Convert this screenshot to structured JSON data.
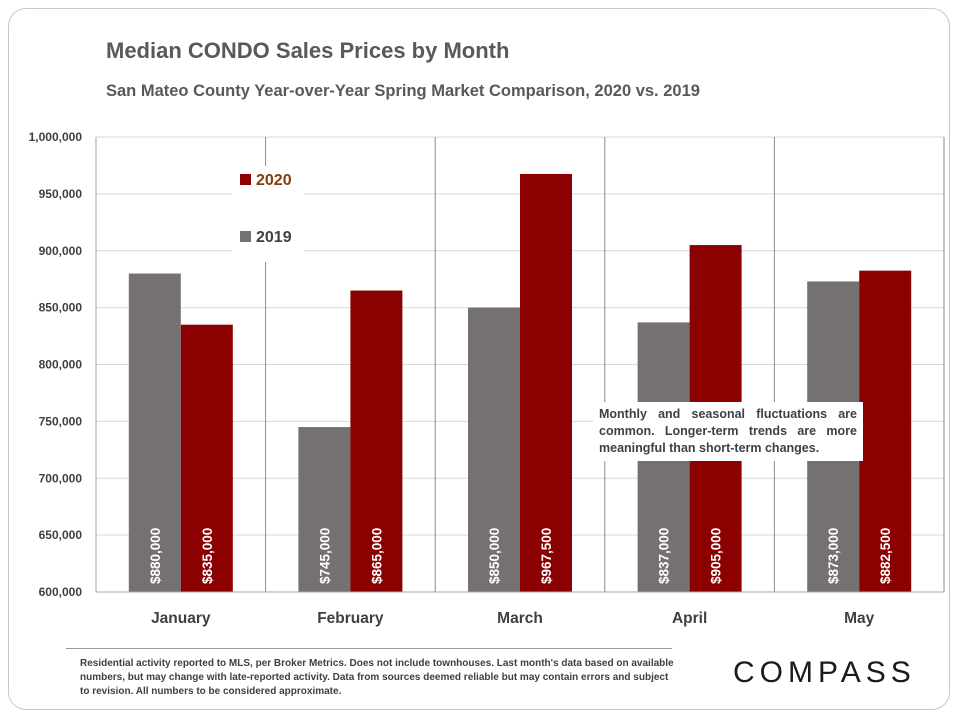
{
  "header": {
    "title": "Median CONDO Sales Prices by Month",
    "subtitle": "San Mateo County Year-over-Year Spring Market Comparison,  2020 vs. 2019"
  },
  "chart_data": {
    "type": "bar",
    "title": "Median CONDO Sales Prices by Month",
    "subtitle": "San Mateo County Year-over-Year Spring Market Comparison,  2020 vs. 2019",
    "categories": [
      "January",
      "February",
      "March",
      "April",
      "May"
    ],
    "series": [
      {
        "name": "2019",
        "color": "#767171",
        "values": [
          880000,
          745000,
          850000,
          837000,
          873000
        ],
        "labels": [
          "$880,000",
          "$745,000",
          "$850,000",
          "$837,000",
          "$873,000"
        ]
      },
      {
        "name": "2020",
        "color": "#8b0000",
        "values": [
          835000,
          865000,
          967500,
          905000,
          882500
        ],
        "labels": [
          "$835,000",
          "$865,000",
          "$967,500",
          "$905,000",
          "$882,500"
        ]
      }
    ],
    "ylim": [
      600000,
      1000000
    ],
    "yticks": [
      600000,
      650000,
      700000,
      750000,
      800000,
      850000,
      900000,
      950000,
      1000000
    ],
    "ytick_labels": [
      "600,000",
      "650,000",
      "700,000",
      "750,000",
      "800,000",
      "850,000",
      "900,000",
      "950,000",
      "1,000,000"
    ],
    "grid": true,
    "legend_position": "top-left",
    "annotation": "Monthly and seasonal fluctuations are common. Longer-term trends are more meaningful than short-term changes."
  },
  "footnote": "Residential activity reported to MLS, per Broker Metrics. Does not include townhouses. Last month's data based on available numbers, but may change with late-reported activity. Data from sources deemed reliable but may contain errors and subject to revision. All numbers to be considered approximate.",
  "brand": {
    "logo_text": "COMPASS"
  }
}
